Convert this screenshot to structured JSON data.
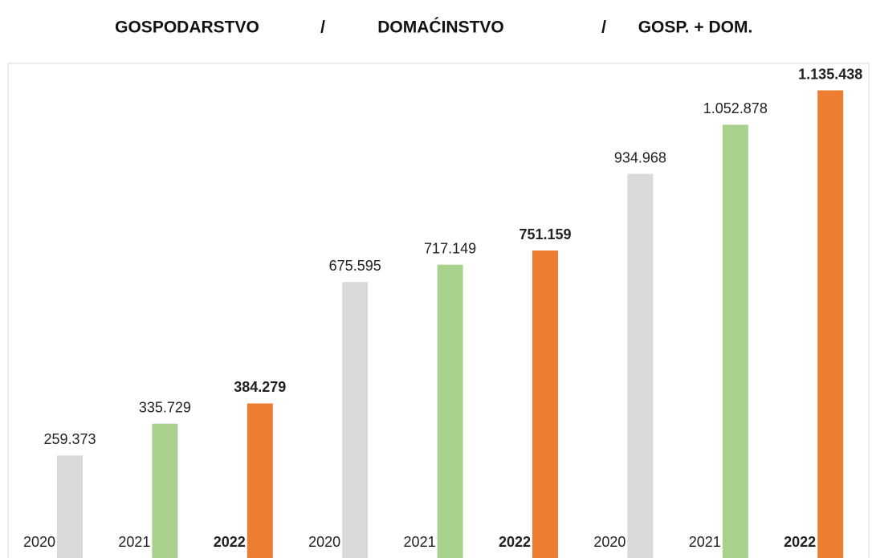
{
  "chart_data": {
    "type": "bar",
    "title": [
      "GOSPODARSTVO",
      "/",
      "DOMAĆINSTVO",
      "/",
      "GOSP. + DOM."
    ],
    "categories": [
      "2020",
      "2021",
      "2022",
      "2020",
      "2021",
      "2022",
      "2020",
      "2021",
      "2022"
    ],
    "values": [
      259373,
      335729,
      384279,
      675595,
      717149,
      751159,
      934968,
      1052878,
      1135438
    ],
    "value_labels": [
      "259.373",
      "335.729",
      "384.279",
      "675.595",
      "717.149",
      "751.159",
      "934.968",
      "1.052.878",
      "1.135.438"
    ],
    "colors": [
      "#d9d9d9",
      "#a9d18e",
      "#ed7d31",
      "#d9d9d9",
      "#a9d18e",
      "#ed7d31",
      "#d9d9d9",
      "#a9d18e",
      "#ed7d31"
    ],
    "ylim": [
      0,
      1200000
    ]
  }
}
